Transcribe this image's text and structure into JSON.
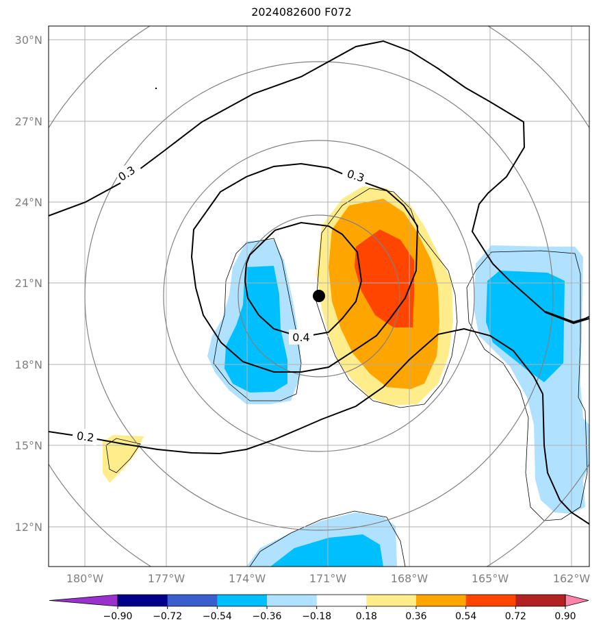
{
  "title": "2024082600 F072",
  "map": {
    "lat_ticks": [
      "30°N",
      "27°N",
      "24°N",
      "21°N",
      "18°N",
      "15°N",
      "12°N"
    ],
    "lon_ticks": [
      "180°W",
      "177°W",
      "174°W",
      "171°W",
      "168°W",
      "165°W",
      "162°W"
    ],
    "center_marker": {
      "lon": -171.3,
      "lat": 20.5
    },
    "contour_labels": [
      "0.3",
      "0.3",
      "0.4",
      "0.2"
    ]
  },
  "colorbar": {
    "colors": [
      "#9932cc",
      "#00008b",
      "#3a5fcd",
      "#00bfff",
      "#b0e2ff",
      "#ffffff",
      "#ffec8b",
      "#ffa500",
      "#ff4500",
      "#b22222",
      "#ff82ab"
    ],
    "labels": [
      "−0.90",
      "−0.72",
      "−0.54",
      "−0.36",
      "−0.18",
      "0.18",
      "0.36",
      "0.54",
      "0.72",
      "0.90"
    ]
  },
  "colors": {
    "light_blue": "#b0e2ff",
    "blue": "#00bfff",
    "yellow": "#ffec8b",
    "orange": "#ffa500",
    "red_orange": "#ff4500",
    "grid": "#b0b0b0",
    "range_ring": "#808080"
  }
}
